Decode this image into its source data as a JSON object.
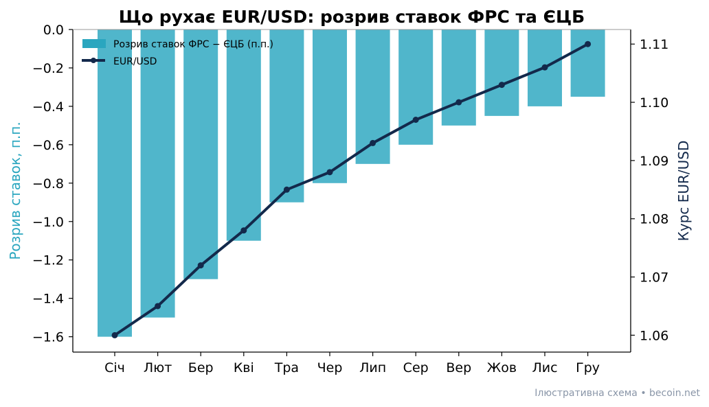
{
  "chart_data": {
    "type": "bar+line",
    "title": "Що рухає EUR/USD: розрив ставок ФРС та ЄЦБ",
    "categories": [
      "Січ",
      "Лют",
      "Бер",
      "Кві",
      "Тра",
      "Чер",
      "Лип",
      "Сер",
      "Вер",
      "Жов",
      "Лис",
      "Гру"
    ],
    "left_axis": {
      "label": "Розрив ставок, п.п.",
      "ylim": [
        -1.68,
        0.0
      ],
      "ticks": [
        0.0,
        -0.2,
        -0.4,
        -0.6,
        -0.8,
        -1.0,
        -1.2,
        -1.4,
        -1.6
      ],
      "tick_labels": [
        "0.0",
        "−0.2",
        "−0.4",
        "−0.6",
        "−0.8",
        "−1.0",
        "−1.2",
        "−1.4",
        "−1.6"
      ]
    },
    "right_axis": {
      "label": "Курс EUR/USD",
      "ylim": [
        1.0571,
        1.1125
      ],
      "ticks": [
        1.06,
        1.07,
        1.08,
        1.09,
        1.1,
        1.11
      ],
      "tick_labels": [
        "1.06",
        "1.07",
        "1.08",
        "1.09",
        "1.10",
        "1.11"
      ]
    },
    "series": [
      {
        "name": "Розрив ставок ФРС − ЄЦБ (п.п.)",
        "type": "bar",
        "axis": "left",
        "color": "#2aa6bf",
        "values": [
          -1.6,
          -1.5,
          -1.3,
          -1.1,
          -0.9,
          -0.8,
          -0.7,
          -0.6,
          -0.5,
          -0.45,
          -0.4,
          -0.35
        ]
      },
      {
        "name": "EUR/USD",
        "type": "line",
        "axis": "right",
        "color": "#13294b",
        "values": [
          1.06,
          1.065,
          1.072,
          1.078,
          1.085,
          1.088,
          1.093,
          1.097,
          1.1,
          1.103,
          1.106,
          1.11
        ]
      }
    ],
    "legend": "top-left",
    "grid": false
  },
  "source_note": "Ілюстративна схема • becoin.net"
}
